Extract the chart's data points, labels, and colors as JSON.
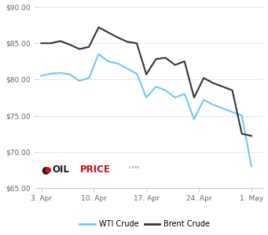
{
  "wti_x": [
    0,
    1,
    2,
    3,
    4,
    5,
    6,
    7,
    8,
    9,
    10,
    11,
    12,
    13,
    14,
    15,
    16,
    17,
    18,
    19,
    20,
    21,
    22
  ],
  "wti_y": [
    80.5,
    80.8,
    80.9,
    80.7,
    79.8,
    80.2,
    83.5,
    82.5,
    82.2,
    81.5,
    80.8,
    77.5,
    79.0,
    78.5,
    77.5,
    78.0,
    74.5,
    77.2,
    76.5,
    76.0,
    75.5,
    75.0,
    68.0
  ],
  "brent_x": [
    0,
    1,
    2,
    3,
    4,
    5,
    6,
    7,
    8,
    9,
    10,
    11,
    12,
    13,
    14,
    15,
    16,
    17,
    18,
    19,
    20,
    21,
    22
  ],
  "brent_y": [
    85.0,
    85.0,
    85.3,
    84.8,
    84.2,
    84.5,
    87.2,
    86.5,
    85.8,
    85.2,
    85.0,
    80.7,
    82.8,
    83.0,
    82.0,
    82.5,
    77.5,
    80.2,
    79.5,
    79.0,
    78.5,
    72.5,
    72.2
  ],
  "wti_color": "#74c7f0",
  "brent_color": "#333333",
  "ylim": [
    65,
    90
  ],
  "yticks": [
    65,
    70,
    75,
    80,
    85,
    90
  ],
  "ytick_labels": [
    "$65.00",
    "$70.00",
    "$75.00",
    "$80.00",
    "$85.00",
    "$90.00"
  ],
  "xtick_positions": [
    0,
    7,
    14,
    21,
    28
  ],
  "xtick_labels": [
    "3. Apr",
    "10. Apr",
    "17. Apr",
    "24. Apr",
    "1. May"
  ],
  "grid_color": "#e8e8e8",
  "background_color": "#ffffff",
  "wti_label": "WTI Crude",
  "brent_label": "Brent Crude",
  "linewidth": 1.5,
  "logo_oil_color": "#cc1111",
  "logo_price_color": "#cc1111",
  "logo_dot_color": "#222222",
  "logo_com_color": "#888888"
}
